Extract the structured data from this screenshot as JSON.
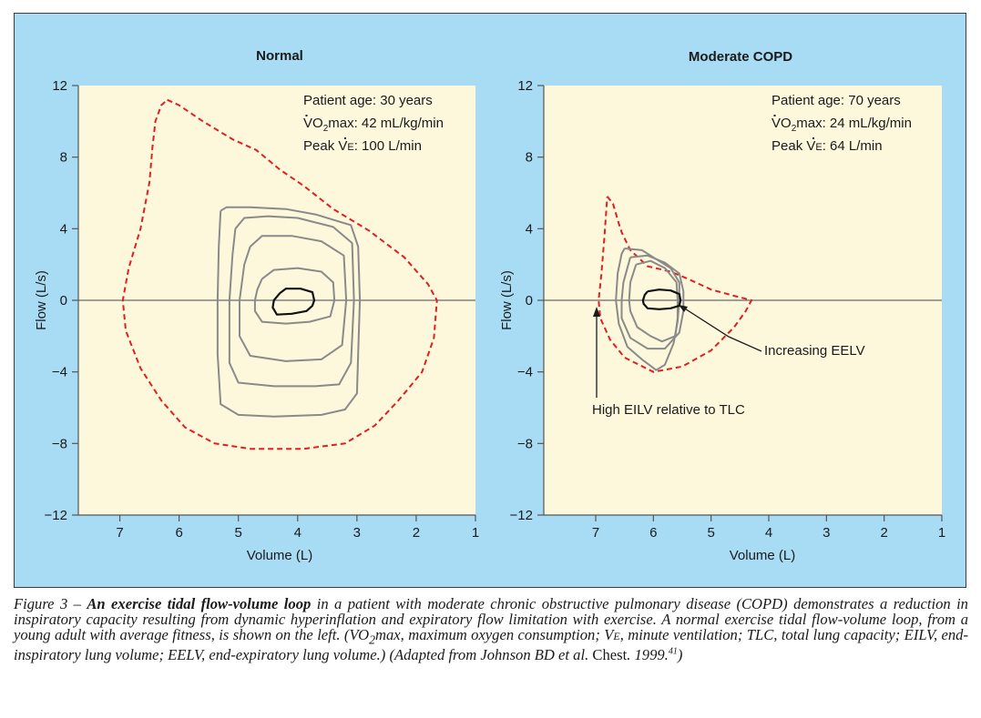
{
  "chart_data": [
    {
      "type": "line",
      "title": "Normal",
      "xlabel": "Volume (L)",
      "ylabel": "Flow (L/s)",
      "xlim": [
        7.7,
        1
      ],
      "ylim": [
        -12,
        12
      ],
      "x_ticks": [
        "7",
        "6",
        "5",
        "4",
        "3",
        "2",
        "1"
      ],
      "x_tick_values": [
        7,
        6,
        5,
        4,
        3,
        2,
        1
      ],
      "y_ticks": [
        "12",
        "8",
        "4",
        "0",
        "−4",
        "−8",
        "−12"
      ],
      "y_tick_values": [
        12,
        8,
        4,
        0,
        -4,
        -8,
        -12
      ],
      "annotations": [
        "Patient age: 30 years",
        "max: 42 mL/kg/min",
        "Peak ",
        ": 100 L/min"
      ],
      "series": [
        {
          "name": "maximal flow-volume envelope",
          "style": "dashed-red",
          "points": [
            [
              6.2,
              11.2
            ],
            [
              6.0,
              10.9
            ],
            [
              5.6,
              10.0
            ],
            [
              5.1,
              9.0
            ],
            [
              4.7,
              8.4
            ],
            [
              4.3,
              7.3
            ],
            [
              3.9,
              6.4
            ],
            [
              3.4,
              5.1
            ],
            [
              2.8,
              3.9
            ],
            [
              2.2,
              2.4
            ],
            [
              1.8,
              0.9
            ],
            [
              1.65,
              0.0
            ],
            [
              1.7,
              -2.1
            ],
            [
              1.9,
              -4.0
            ],
            [
              2.3,
              -5.6
            ],
            [
              2.7,
              -7.0
            ],
            [
              3.2,
              -8.0
            ],
            [
              3.9,
              -8.3
            ],
            [
              4.8,
              -8.3
            ],
            [
              5.4,
              -8.0
            ],
            [
              5.9,
              -7.1
            ],
            [
              6.3,
              -5.6
            ],
            [
              6.65,
              -3.8
            ],
            [
              6.9,
              -1.7
            ],
            [
              6.95,
              0.0
            ],
            [
              6.85,
              1.8
            ],
            [
              6.65,
              4.0
            ],
            [
              6.5,
              6.6
            ],
            [
              6.45,
              8.5
            ],
            [
              6.4,
              10.0
            ],
            [
              6.3,
              10.9
            ],
            [
              6.2,
              11.2
            ]
          ]
        },
        {
          "name": "tidal loop 1 (largest)",
          "style": "gray",
          "points": [
            [
              5.3,
              5.0
            ],
            [
              5.2,
              5.2
            ],
            [
              4.8,
              5.2
            ],
            [
              4.2,
              5.1
            ],
            [
              3.7,
              4.8
            ],
            [
              3.1,
              4.2
            ],
            [
              2.98,
              3.0
            ],
            [
              2.95,
              0.0
            ],
            [
              2.98,
              -3.0
            ],
            [
              3.0,
              -5.2
            ],
            [
              3.2,
              -6.1
            ],
            [
              3.6,
              -6.4
            ],
            [
              4.4,
              -6.5
            ],
            [
              5.0,
              -6.4
            ],
            [
              5.3,
              -5.8
            ],
            [
              5.35,
              -3.0
            ],
            [
              5.35,
              0.0
            ],
            [
              5.33,
              3.0
            ],
            [
              5.3,
              5.0
            ]
          ]
        },
        {
          "name": "tidal loop 2",
          "style": "gray",
          "points": [
            [
              5.05,
              4.0
            ],
            [
              4.9,
              4.6
            ],
            [
              4.5,
              4.7
            ],
            [
              4.0,
              4.6
            ],
            [
              3.4,
              4.1
            ],
            [
              3.08,
              3.2
            ],
            [
              3.05,
              0.0
            ],
            [
              3.1,
              -3.5
            ],
            [
              3.3,
              -4.7
            ],
            [
              3.7,
              -4.8
            ],
            [
              4.4,
              -4.8
            ],
            [
              5.0,
              -4.6
            ],
            [
              5.15,
              -3.5
            ],
            [
              5.15,
              0.0
            ],
            [
              5.1,
              2.5
            ],
            [
              5.05,
              4.0
            ]
          ]
        },
        {
          "name": "tidal loop 3",
          "style": "gray",
          "points": [
            [
              4.8,
              3.0
            ],
            [
              4.6,
              3.6
            ],
            [
              4.1,
              3.6
            ],
            [
              3.6,
              3.3
            ],
            [
              3.22,
              2.5
            ],
            [
              3.18,
              0.0
            ],
            [
              3.25,
              -2.5
            ],
            [
              3.6,
              -3.3
            ],
            [
              4.2,
              -3.4
            ],
            [
              4.8,
              -3.1
            ],
            [
              4.98,
              -2.0
            ],
            [
              4.98,
              0.0
            ],
            [
              4.9,
              2.0
            ],
            [
              4.8,
              3.0
            ]
          ]
        },
        {
          "name": "tidal loop 4",
          "style": "gray",
          "points": [
            [
              4.6,
              1.2
            ],
            [
              4.4,
              1.7
            ],
            [
              4.0,
              1.8
            ],
            [
              3.6,
              1.6
            ],
            [
              3.4,
              1.0
            ],
            [
              3.38,
              0.0
            ],
            [
              3.45,
              -0.9
            ],
            [
              3.8,
              -1.2
            ],
            [
              4.2,
              -1.3
            ],
            [
              4.6,
              -1.2
            ],
            [
              4.72,
              -0.6
            ],
            [
              4.72,
              0.0
            ],
            [
              4.68,
              0.6
            ],
            [
              4.6,
              1.2
            ]
          ]
        },
        {
          "name": "resting loop",
          "style": "black",
          "points": [
            [
              4.3,
              0.4
            ],
            [
              4.2,
              0.65
            ],
            [
              3.95,
              0.65
            ],
            [
              3.75,
              0.45
            ],
            [
              3.72,
              0.0
            ],
            [
              3.75,
              -0.3
            ],
            [
              3.85,
              -0.6
            ],
            [
              4.1,
              -0.75
            ],
            [
              4.35,
              -0.8
            ],
            [
              4.42,
              -0.4
            ],
            [
              4.4,
              0.0
            ],
            [
              4.35,
              0.2
            ],
            [
              4.3,
              0.4
            ]
          ]
        }
      ]
    },
    {
      "type": "line",
      "title": "Moderate COPD",
      "xlabel": "Volume (L)",
      "ylabel": "Flow (L/s)",
      "xlim": [
        7.9,
        1
      ],
      "ylim": [
        -12,
        12
      ],
      "x_ticks": [
        "7",
        "6",
        "5",
        "4",
        "3",
        "2",
        "1"
      ],
      "x_tick_values": [
        7,
        6,
        5,
        4,
        3,
        2,
        1
      ],
      "y_ticks": [
        "12",
        "8",
        "4",
        "0",
        "−4",
        "−8",
        "−12"
      ],
      "y_tick_values": [
        12,
        8,
        4,
        0,
        -4,
        -8,
        -12
      ],
      "annotations": [
        "Patient age: 70 years",
        "max: 24 mL/kg/min",
        "Peak ",
        ": 64 L/min",
        "Increasing EELV",
        "High EILV relative to TLC"
      ],
      "series": [
        {
          "name": "maximal flow-volume envelope",
          "style": "dashed-red",
          "points": [
            [
              6.8,
              5.8
            ],
            [
              6.7,
              5.4
            ],
            [
              6.6,
              4.3
            ],
            [
              6.55,
              3.8
            ],
            [
              6.4,
              2.8
            ],
            [
              6.1,
              1.9
            ],
            [
              5.7,
              1.6
            ],
            [
              5.4,
              1.2
            ],
            [
              5.0,
              0.6
            ],
            [
              4.6,
              0.25
            ],
            [
              4.3,
              0.0
            ],
            [
              4.4,
              -0.6
            ],
            [
              4.6,
              -1.5
            ],
            [
              5.0,
              -2.8
            ],
            [
              5.5,
              -3.7
            ],
            [
              6.0,
              -4.0
            ],
            [
              6.5,
              -3.2
            ],
            [
              6.75,
              -2.2
            ],
            [
              6.92,
              -1.0
            ],
            [
              6.95,
              0.0
            ],
            [
              6.9,
              1.5
            ],
            [
              6.85,
              3.5
            ],
            [
              6.8,
              5.8
            ]
          ]
        },
        {
          "name": "tidal loop 1 (largest)",
          "style": "gray",
          "points": [
            [
              6.5,
              2.9
            ],
            [
              6.2,
              2.8
            ],
            [
              5.95,
              2.3
            ],
            [
              5.7,
              1.8
            ],
            [
              5.55,
              1.0
            ],
            [
              5.55,
              0.0
            ],
            [
              5.58,
              -1.2
            ],
            [
              5.65,
              -2.4
            ],
            [
              5.8,
              -3.6
            ],
            [
              5.95,
              -3.9
            ],
            [
              6.2,
              -3.3
            ],
            [
              6.45,
              -2.6
            ],
            [
              6.6,
              -1.3
            ],
            [
              6.65,
              0.0
            ],
            [
              6.62,
              1.5
            ],
            [
              6.55,
              2.6
            ],
            [
              6.5,
              2.9
            ]
          ]
        },
        {
          "name": "tidal loop 2",
          "style": "gray",
          "points": [
            [
              6.4,
              2.4
            ],
            [
              6.1,
              2.5
            ],
            [
              5.8,
              2.1
            ],
            [
              5.55,
              1.5
            ],
            [
              5.48,
              0.5
            ],
            [
              5.48,
              -0.6
            ],
            [
              5.55,
              -1.8
            ],
            [
              5.8,
              -2.7
            ],
            [
              6.1,
              -2.7
            ],
            [
              6.4,
              -2.1
            ],
            [
              6.55,
              -1.0
            ],
            [
              6.55,
              0.0
            ],
            [
              6.52,
              1.0
            ],
            [
              6.4,
              2.4
            ]
          ]
        },
        {
          "name": "tidal loop 3",
          "style": "gray",
          "points": [
            [
              6.3,
              2.0
            ],
            [
              6.05,
              2.2
            ],
            [
              5.8,
              1.8
            ],
            [
              5.6,
              1.0
            ],
            [
              5.58,
              0.0
            ],
            [
              5.58,
              -1.0
            ],
            [
              5.62,
              -2.0
            ],
            [
              5.85,
              -2.3
            ],
            [
              6.05,
              -2.0
            ],
            [
              6.28,
              -1.5
            ],
            [
              6.4,
              -0.6
            ],
            [
              6.42,
              0.0
            ],
            [
              6.4,
              1.0
            ],
            [
              6.3,
              2.0
            ]
          ]
        },
        {
          "name": "resting loop",
          "style": "black",
          "points": [
            [
              6.1,
              0.5
            ],
            [
              5.9,
              0.6
            ],
            [
              5.7,
              0.55
            ],
            [
              5.55,
              0.35
            ],
            [
              5.53,
              0.0
            ],
            [
              5.55,
              -0.3
            ],
            [
              5.7,
              -0.45
            ],
            [
              5.9,
              -0.5
            ],
            [
              6.1,
              -0.45
            ],
            [
              6.17,
              -0.2
            ],
            [
              6.18,
              0.0
            ],
            [
              6.15,
              0.3
            ],
            [
              6.1,
              0.5
            ]
          ]
        }
      ]
    }
  ],
  "left_panel": {
    "title": "Normal",
    "info_line1": "Patient age: 30 years",
    "info_v": "V",
    "info_o2": "O",
    "info_sub2": "2",
    "info_line2_rest": "max: 42 mL/kg/min",
    "info_peak": "Peak ",
    "info_ve_v": "V",
    "info_ve_e": "E",
    "info_line3_rest": ": 100 L/min"
  },
  "right_panel": {
    "title": "Moderate COPD",
    "info_line1": "Patient age: 70 years",
    "info_v": "V",
    "info_o2": "O",
    "info_sub2": "2",
    "info_line2_rest": "max: 24 mL/kg/min",
    "info_peak": "Peak ",
    "info_ve_v": "V",
    "info_ve_e": "E",
    "info_line3_rest": ": 64 L/min",
    "callout_eelv": "Increasing EELV",
    "callout_eilv": "High EILV relative to TLC"
  },
  "caption": {
    "lead": "Figure 3 – ",
    "bold": "An exercise tidal flow-volume loop",
    "part1": " in a patient with moderate chronic obstructive pulmonary disease (COPD) demonstrates a reduction in inspiratory capacity resulting from dynamic hyperinflation and expiratory flow limitation with exercise. A normal exercise tidal flow-volume loop, from a young adult with average fitness, is shown on the left. (",
    "vo2_v": "V",
    "vo2_o": "O",
    "vo2_sub": "2",
    "part2": "max, maximum oxygen consumption; ",
    "ve_v": "V",
    "ve_e": "E",
    "part3": ", minute ventilation; TLC, total lung capacity; EILV, end-inspiratory lung volume; EELV, end-expiratory lung volume.) (Adapted from Johnson BD et al. ",
    "journal": "Chest",
    "part4": ". 1999.",
    "ref": "41",
    "part5": ")"
  },
  "colors": {
    "panel_bg": "#a8dcf5",
    "plot_bg": "#fdf8dc",
    "envelope": "#e02020",
    "tidal": "#8a8a8a",
    "rest": "#111111",
    "axis": "#555555",
    "text": "#1a1a1a"
  }
}
